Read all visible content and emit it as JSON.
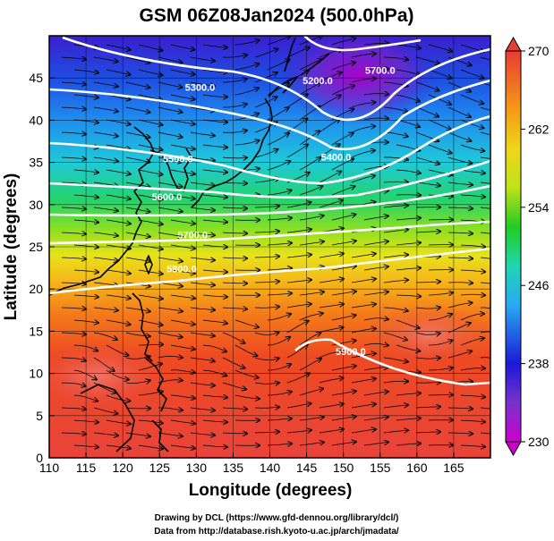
{
  "title": "GSM 06Z08Jan2024 (500.0hPa)",
  "xlabel": "Longitude (degrees)",
  "ylabel": "Latitude  (degrees)",
  "credits": [
    "Drawing by DCL (https://www.gfd-dennou.org/library/dcl/)",
    "Data from http://database.rish.kyoto-u.ac.jp/arch/jmadata/"
  ],
  "map": {
    "lon_range": [
      110,
      170
    ],
    "lat_range": [
      0,
      50
    ],
    "lon_ticks": [
      "110",
      "115",
      "120",
      "125",
      "130",
      "135",
      "140",
      "145",
      "150",
      "155",
      "160",
      "165"
    ],
    "lat_ticks": [
      "0",
      "5",
      "10",
      "15",
      "20",
      "25",
      "30",
      "35",
      "40",
      "45"
    ],
    "grid_lines": true,
    "colorbar": {
      "min": 230,
      "max": 270,
      "labels": [
        "230",
        "238",
        "246",
        "254",
        "262",
        "270"
      ],
      "colors": [
        "#cc00cc",
        "#7733cc",
        "#1a1ad9",
        "#2aa9f0",
        "#1fd6b0",
        "#22cc22",
        "#bfe21a",
        "#f0d51a",
        "#f59a16",
        "#ee5522",
        "#e83c36"
      ]
    },
    "contours": [
      {
        "label": "5700.0",
        "lon": 155,
        "lat": 45.5
      },
      {
        "label": "5200.0",
        "lon": 146.5,
        "lat": 44.3
      },
      {
        "label": "5300.0",
        "lon": 130.5,
        "lat": 43.5
      },
      {
        "label": "5400.0",
        "lon": 149,
        "lat": 35.2
      },
      {
        "label": "5500.0",
        "lon": 127.5,
        "lat": 35.0
      },
      {
        "label": "5600.0",
        "lon": 126,
        "lat": 30.5
      },
      {
        "label": "5700.0",
        "lon": 129.5,
        "lat": 26
      },
      {
        "label": "5800.0",
        "lon": 128,
        "lat": 22
      },
      {
        "label": "5900.0",
        "lon": 151,
        "lat": 12.2
      }
    ]
  }
}
